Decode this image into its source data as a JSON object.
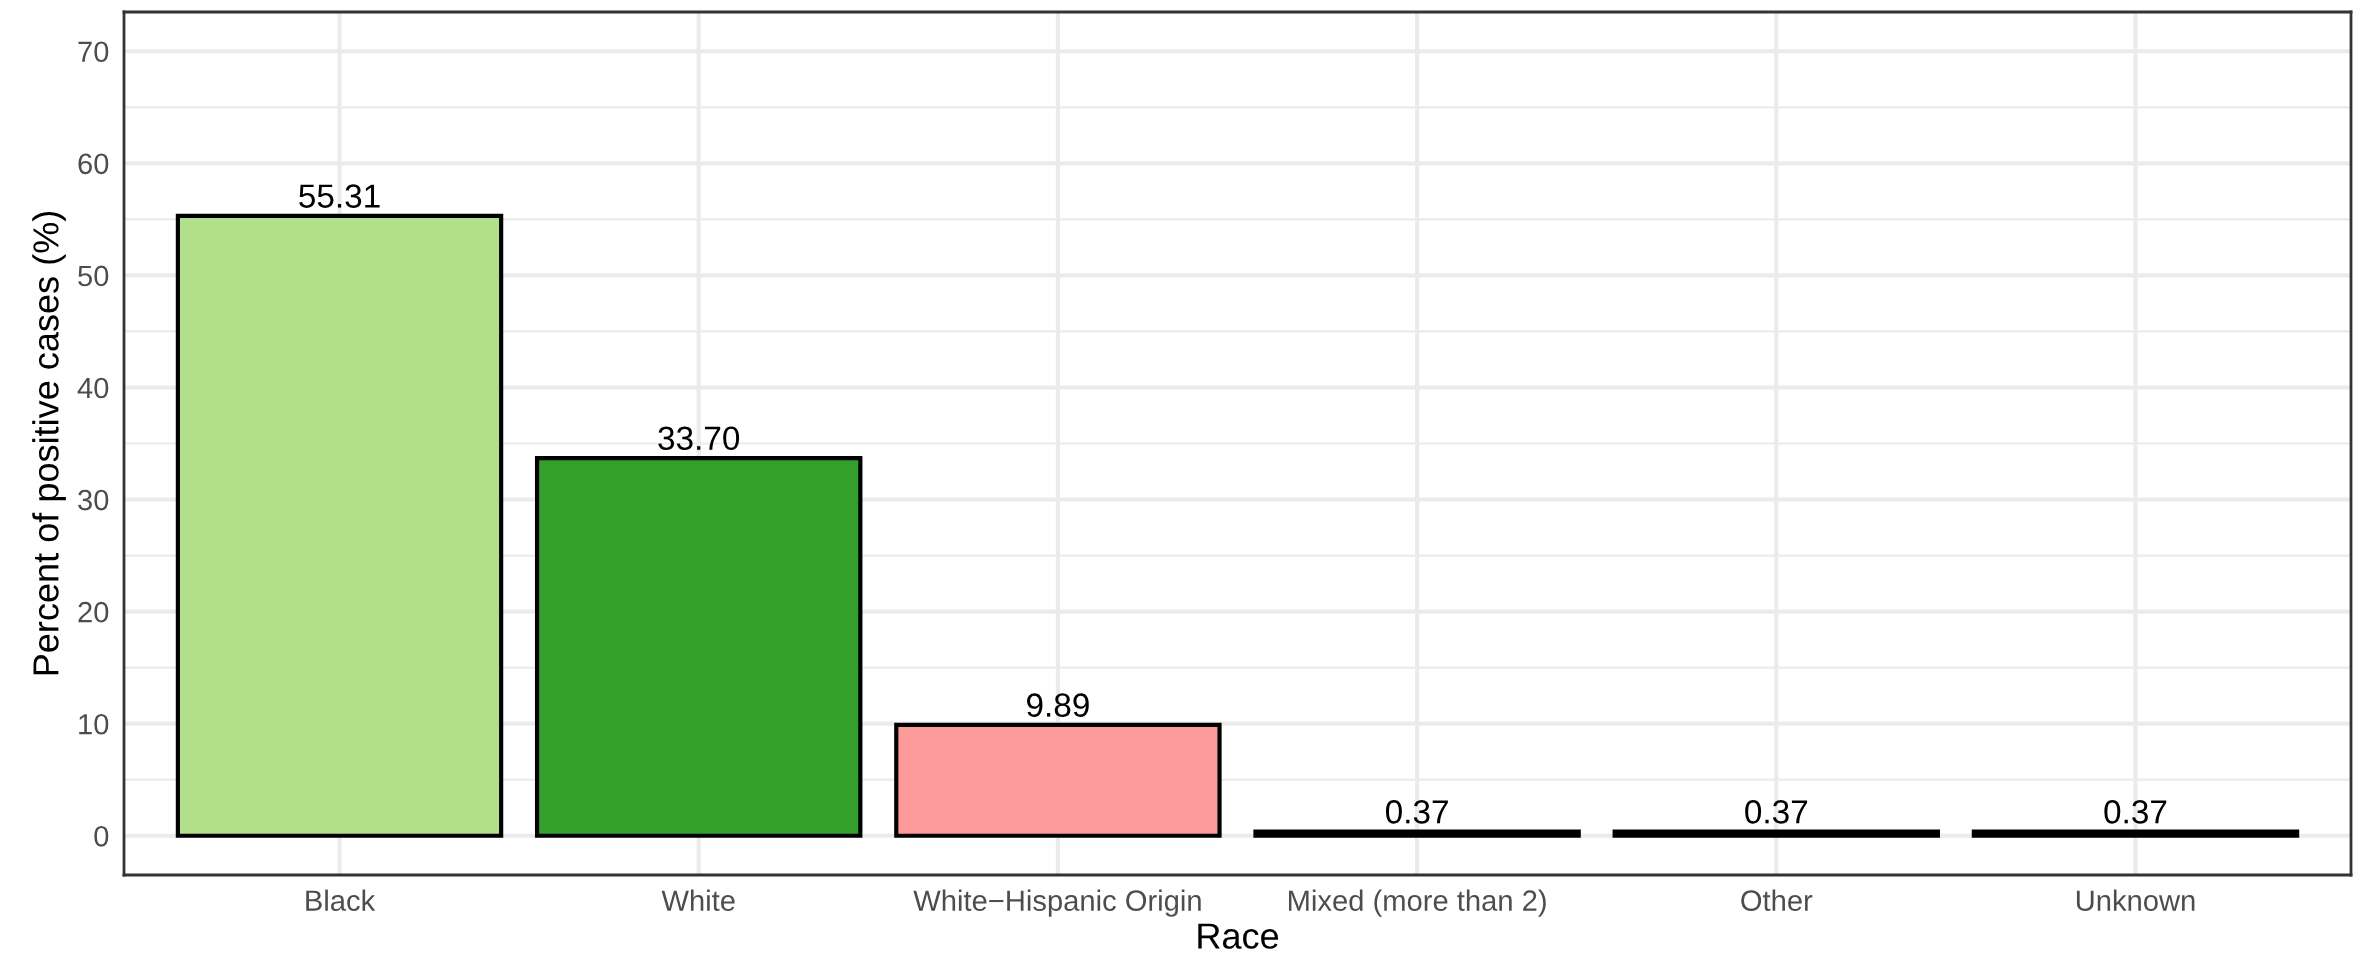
{
  "chart_data": {
    "type": "bar",
    "xlabel": "Race",
    "ylabel": "Percent of positive cases (%)",
    "categories": [
      "Black",
      "White",
      "White−Hispanic Origin",
      "Mixed (more than 2)",
      "Other",
      "Unknown"
    ],
    "values": [
      55.31,
      33.7,
      9.89,
      0.37,
      0.37,
      0.37
    ],
    "value_labels": [
      "55.31",
      "33.70",
      "9.89",
      "0.37",
      "0.37",
      "0.37"
    ],
    "colors": [
      "#b2df8a",
      "#33a02c",
      "#fb9a99",
      "#e31a1c",
      "#fdbf6f",
      "#ff7f00"
    ],
    "ylim": [
      -3.5,
      73.5
    ],
    "yticks": [
      0,
      {
        "value": 5,
        "label": null
      },
      10,
      {
        "value": 15,
        "label": null
      },
      20,
      {
        "value": 25,
        "label": null
      },
      30,
      {
        "value": 35,
        "label": null
      },
      40,
      {
        "value": 45,
        "label": null
      },
      50,
      {
        "value": 55,
        "label": null
      },
      60,
      {
        "value": 65,
        "label": null
      },
      70
    ],
    "grid": true
  }
}
